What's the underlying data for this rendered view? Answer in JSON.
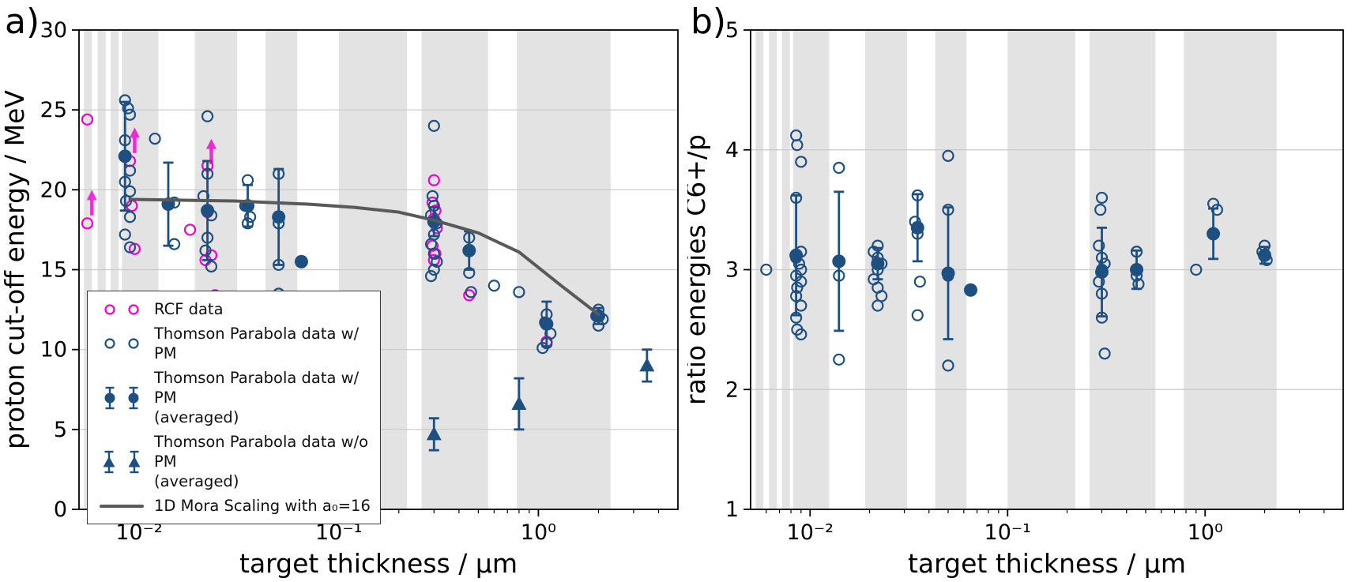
{
  "figure": {
    "panel_a_label": "a)",
    "panel_b_label": "b)"
  },
  "colors": {
    "blue": "#1d4f80",
    "magenta": "#ee00cc",
    "gray_line": "#595959",
    "band": "#e3e3e3",
    "grid": "#c9c9c9"
  },
  "legend": {
    "entries": [
      {
        "label": "RCF data"
      },
      {
        "label": "Thomson Parabola data w/ PM"
      },
      {
        "label": "Thomson Parabola data w/ PM",
        "label2": "(averaged)"
      },
      {
        "label": "Thomson Parabola data w/o PM",
        "label2": "(averaged)"
      },
      {
        "label": "1D Mora Scaling with a₀=16"
      }
    ]
  },
  "chart_data": [
    {
      "id": "a",
      "type": "scatter",
      "title": "",
      "xlabel": "target thickness / μm",
      "ylabel": "proton cut-off energy / MeV",
      "xscale": "log",
      "xlim": [
        0.005,
        5
      ],
      "ylim": [
        0,
        30
      ],
      "yticks": [
        0,
        5,
        10,
        15,
        20,
        25,
        30
      ],
      "xticks": [
        {
          "v": 0.01,
          "label": "10⁻²"
        },
        {
          "v": 0.1,
          "label": "10⁻¹"
        },
        {
          "v": 1,
          "label": "10⁰"
        }
      ],
      "grid": "horizontal",
      "legend_position": "lower left",
      "bands": [
        [
          0.0053,
          0.0058
        ],
        [
          0.0062,
          0.0068
        ],
        [
          0.0072,
          0.0079
        ],
        [
          0.0082,
          0.0125
        ],
        [
          0.019,
          0.031
        ],
        [
          0.043,
          0.062
        ],
        [
          0.1,
          0.22
        ],
        [
          0.26,
          0.56
        ],
        [
          0.78,
          2.3
        ]
      ],
      "series": [
        {
          "name": "RCF data",
          "type": "open-circle",
          "color": "magenta",
          "points": [
            [
              0.0055,
              24.4
            ],
            [
              0.0055,
              17.9
            ],
            [
              0.009,
              21.8
            ],
            [
              0.0092,
              19.0
            ],
            [
              0.0095,
              16.3
            ],
            [
              0.018,
              17.5
            ],
            [
              0.022,
              21.5
            ],
            [
              0.022,
              18.6
            ],
            [
              0.023,
              15.9
            ],
            [
              0.0215,
              15.6
            ],
            [
              0.024,
              13.4
            ],
            [
              0.3,
              20.6
            ],
            [
              0.295,
              19.2
            ],
            [
              0.305,
              18.7
            ],
            [
              0.3,
              18.2
            ],
            [
              0.31,
              17.6
            ],
            [
              0.295,
              16.5
            ],
            [
              0.305,
              16.0
            ],
            [
              0.3,
              15.6
            ],
            [
              0.45,
              13.4
            ],
            [
              1.1,
              10.5
            ]
          ]
        },
        {
          "name": "Thomson Parabola data w/ PM",
          "type": "open-circle",
          "color": "blue",
          "points": [
            [
              0.0085,
              25.6
            ],
            [
              0.0088,
              25.1
            ],
            [
              0.009,
              24.7
            ],
            [
              0.0085,
              23.1
            ],
            [
              0.009,
              21.2
            ],
            [
              0.0085,
              20.5
            ],
            [
              0.009,
              19.9
            ],
            [
              0.0086,
              19.3
            ],
            [
              0.009,
              18.3
            ],
            [
              0.0085,
              17.2
            ],
            [
              0.009,
              16.4
            ],
            [
              0.012,
              23.2
            ],
            [
              0.015,
              19.2
            ],
            [
              0.015,
              16.6
            ],
            [
              0.022,
              24.6
            ],
            [
              0.022,
              21.0
            ],
            [
              0.021,
              19.6
            ],
            [
              0.023,
              18.4
            ],
            [
              0.022,
              17.0
            ],
            [
              0.0215,
              16.2
            ],
            [
              0.023,
              15.2
            ],
            [
              0.035,
              20.6
            ],
            [
              0.034,
              19.0
            ],
            [
              0.036,
              18.3
            ],
            [
              0.035,
              17.9
            ],
            [
              0.05,
              21.0
            ],
            [
              0.05,
              17.9
            ],
            [
              0.05,
              15.3
            ],
            [
              0.05,
              13.5
            ],
            [
              0.3,
              24.0
            ],
            [
              0.295,
              19.6
            ],
            [
              0.3,
              19.0
            ],
            [
              0.29,
              18.4
            ],
            [
              0.31,
              17.9
            ],
            [
              0.3,
              17.2
            ],
            [
              0.29,
              16.6
            ],
            [
              0.3,
              16.0
            ],
            [
              0.31,
              15.5
            ],
            [
              0.3,
              15.0
            ],
            [
              0.29,
              14.6
            ],
            [
              0.45,
              17.0
            ],
            [
              0.45,
              14.8
            ],
            [
              0.46,
              13.6
            ],
            [
              0.6,
              14.0
            ],
            [
              0.8,
              13.6
            ],
            [
              1.1,
              12.2
            ],
            [
              1.08,
              11.7
            ],
            [
              1.15,
              11.0
            ],
            [
              1.1,
              10.4
            ],
            [
              1.05,
              10.1
            ],
            [
              2.0,
              12.5
            ],
            [
              1.95,
              12.1
            ],
            [
              2.1,
              11.9
            ],
            [
              2.0,
              11.5
            ]
          ]
        },
        {
          "name": "Thomson Parabola data w/ PM (averaged)",
          "type": "filled-circle",
          "color": "blue",
          "points": [
            [
              0.0085,
              22.1,
              3.4
            ],
            [
              0.014,
              19.1,
              2.6
            ],
            [
              0.022,
              18.7,
              3.1
            ],
            [
              0.035,
              19.0,
              1.3
            ],
            [
              0.05,
              18.3,
              3.0
            ],
            [
              0.065,
              15.5,
              0
            ],
            [
              0.3,
              18.0,
              0.9
            ],
            [
              0.45,
              16.2,
              1.2
            ],
            [
              1.1,
              11.6,
              1.4
            ],
            [
              2.0,
              12.1,
              0.5
            ]
          ]
        },
        {
          "name": "Thomson Parabola data w/o PM (averaged)",
          "type": "triangle",
          "color": "blue",
          "points": [
            [
              0.3,
              4.7,
              1.0
            ],
            [
              0.8,
              6.6,
              1.6
            ],
            [
              3.5,
              9.0,
              1.0
            ]
          ]
        },
        {
          "name": "1D Mora Scaling with a₀=16",
          "type": "line",
          "color": "gray_line",
          "points": [
            [
              0.009,
              19.4
            ],
            [
              0.03,
              19.3
            ],
            [
              0.07,
              19.1
            ],
            [
              0.12,
              18.9
            ],
            [
              0.2,
              18.6
            ],
            [
              0.3,
              18.1
            ],
            [
              0.5,
              17.3
            ],
            [
              0.8,
              16.1
            ],
            [
              1.3,
              14.0
            ],
            [
              2.0,
              12.2
            ]
          ]
        },
        {
          "name": "RCF lower-limit arrows",
          "type": "arrow-up",
          "color": "magenta",
          "points": [
            [
              0.0058,
              18.4,
              20.0
            ],
            [
              0.0095,
              22.3,
              23.9
            ],
            [
              0.023,
              21.6,
              23.2
            ]
          ]
        }
      ]
    },
    {
      "id": "b",
      "type": "scatter",
      "title": "",
      "xlabel": "target thickness / μm",
      "ylabel": "ratio energies C6+/p",
      "xscale": "log",
      "xlim": [
        0.005,
        5
      ],
      "ylim": [
        1,
        5
      ],
      "yticks": [
        1,
        2,
        3,
        4,
        5
      ],
      "xticks": [
        {
          "v": 0.01,
          "label": "10⁻²"
        },
        {
          "v": 0.1,
          "label": "10⁻¹"
        },
        {
          "v": 1,
          "label": "10⁰"
        }
      ],
      "grid": "horizontal",
      "legend_position": "none",
      "bands": [
        [
          0.0053,
          0.0058
        ],
        [
          0.0062,
          0.0068
        ],
        [
          0.0072,
          0.0079
        ],
        [
          0.0082,
          0.0125
        ],
        [
          0.019,
          0.031
        ],
        [
          0.043,
          0.062
        ],
        [
          0.1,
          0.22
        ],
        [
          0.26,
          0.56
        ],
        [
          0.78,
          2.3
        ]
      ],
      "series": [
        {
          "name": "Thomson Parabola data w/ PM",
          "type": "open-circle",
          "color": "blue",
          "points": [
            [
              0.006,
              3.0
            ],
            [
              0.0085,
              4.12
            ],
            [
              0.0086,
              4.04
            ],
            [
              0.009,
              3.9
            ],
            [
              0.0085,
              3.6
            ],
            [
              0.009,
              3.15
            ],
            [
              0.0085,
              3.1
            ],
            [
              0.0088,
              3.05
            ],
            [
              0.009,
              3.0
            ],
            [
              0.0085,
              2.95
            ],
            [
              0.009,
              2.9
            ],
            [
              0.0086,
              2.85
            ],
            [
              0.0085,
              2.78
            ],
            [
              0.009,
              2.7
            ],
            [
              0.0085,
              2.6
            ],
            [
              0.0086,
              2.5
            ],
            [
              0.009,
              2.46
            ],
            [
              0.014,
              3.85
            ],
            [
              0.014,
              2.95
            ],
            [
              0.014,
              2.25
            ],
            [
              0.022,
              3.2
            ],
            [
              0.021,
              3.15
            ],
            [
              0.022,
              3.1
            ],
            [
              0.023,
              3.05
            ],
            [
              0.022,
              3.0
            ],
            [
              0.021,
              2.92
            ],
            [
              0.022,
              2.85
            ],
            [
              0.023,
              2.78
            ],
            [
              0.022,
              2.7
            ],
            [
              0.035,
              3.62
            ],
            [
              0.034,
              3.4
            ],
            [
              0.035,
              3.3
            ],
            [
              0.036,
              2.9
            ],
            [
              0.035,
              2.62
            ],
            [
              0.05,
              3.95
            ],
            [
              0.05,
              3.5
            ],
            [
              0.05,
              2.95
            ],
            [
              0.05,
              2.2
            ],
            [
              0.3,
              3.6
            ],
            [
              0.295,
              3.5
            ],
            [
              0.29,
              3.2
            ],
            [
              0.3,
              3.1
            ],
            [
              0.31,
              3.05
            ],
            [
              0.3,
              3.0
            ],
            [
              0.29,
              2.9
            ],
            [
              0.3,
              2.8
            ],
            [
              0.3,
              2.6
            ],
            [
              0.31,
              2.3
            ],
            [
              0.45,
              3.15
            ],
            [
              0.45,
              2.95
            ],
            [
              0.46,
              2.88
            ],
            [
              0.9,
              3.0
            ],
            [
              1.1,
              3.55
            ],
            [
              1.15,
              3.5
            ],
            [
              2.0,
              3.2
            ],
            [
              1.95,
              3.15
            ],
            [
              2.05,
              3.08
            ]
          ]
        },
        {
          "name": "Thomson Parabola data w/ PM (averaged)",
          "type": "filled-circle",
          "color": "blue",
          "points": [
            [
              0.0085,
              3.12,
              0.5
            ],
            [
              0.014,
              3.07,
              0.58
            ],
            [
              0.022,
              3.05,
              0.13
            ],
            [
              0.035,
              3.35,
              0.28
            ],
            [
              0.05,
              2.97,
              0.55
            ],
            [
              0.065,
              2.83,
              0
            ],
            [
              0.3,
              2.98,
              0.37
            ],
            [
              0.45,
              3.0,
              0.16
            ],
            [
              1.1,
              3.3,
              0.21
            ],
            [
              2.0,
              3.12,
              0.07
            ]
          ]
        }
      ]
    }
  ]
}
